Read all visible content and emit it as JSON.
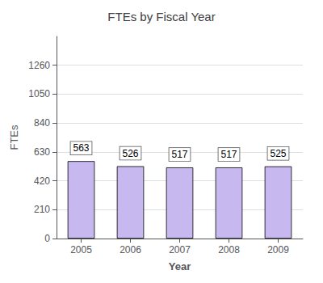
{
  "chart_data": {
    "type": "bar",
    "title": "FTEs by Fiscal Year",
    "xlabel": "Year",
    "ylabel": "FTEs",
    "categories": [
      "2005",
      "2006",
      "2007",
      "2008",
      "2009"
    ],
    "values": [
      563,
      526,
      517,
      517,
      525
    ],
    "color": "#c8b8f0",
    "ylim": [
      0,
      1470
    ],
    "yticks": [
      0,
      210,
      420,
      630,
      840,
      1050,
      1260
    ],
    "grid": true,
    "data_labels": true
  }
}
